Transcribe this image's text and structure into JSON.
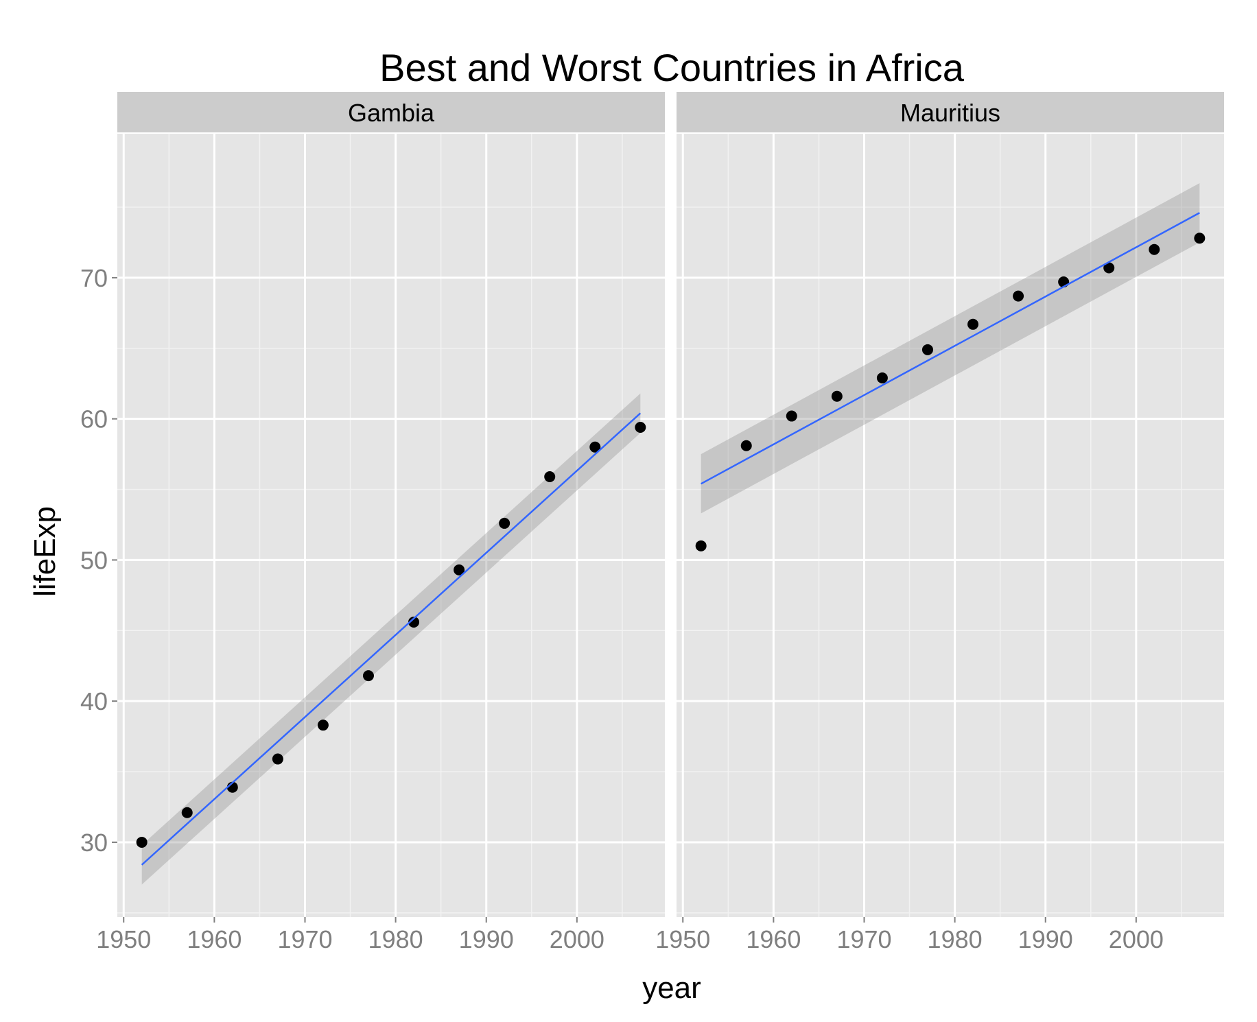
{
  "chart_data": {
    "type": "scatter",
    "title": "Best and Worst Countries in Africa",
    "xlabel": "year",
    "ylabel": "lifeExp",
    "xlim": [
      1949.3,
      2009.7
    ],
    "ylim": [
      24.7,
      80.2
    ],
    "x_ticks": [
      1950,
      1960,
      1970,
      1980,
      1990,
      2000
    ],
    "y_ticks": [
      30,
      40,
      50,
      60,
      70
    ],
    "grid": true,
    "panels": [
      {
        "name": "Gambia",
        "x": [
          1952,
          1957,
          1962,
          1967,
          1972,
          1977,
          1982,
          1987,
          1992,
          1997,
          2002,
          2007
        ],
        "y": [
          30.0,
          32.1,
          33.9,
          35.9,
          38.3,
          41.8,
          45.6,
          49.3,
          52.6,
          55.9,
          58.0,
          59.4
        ],
        "fit": {
          "x": [
            1952,
            2007
          ],
          "y": [
            28.4,
            60.4
          ]
        },
        "ci_lower": [
          27.0,
          59.0
        ],
        "ci_upper": [
          29.8,
          61.8
        ]
      },
      {
        "name": "Mauritius",
        "x": [
          1952,
          1957,
          1962,
          1967,
          1972,
          1977,
          1982,
          1987,
          1992,
          1997,
          2002,
          2007
        ],
        "y": [
          51.0,
          58.1,
          60.2,
          61.6,
          62.9,
          64.9,
          66.7,
          68.7,
          69.7,
          70.7,
          72.0,
          72.8
        ],
        "fit": {
          "x": [
            1952,
            2007
          ],
          "y": [
            55.4,
            74.6
          ]
        },
        "ci_lower": [
          53.3,
          72.5
        ],
        "ci_upper": [
          57.5,
          76.7
        ]
      }
    ],
    "colors": {
      "panel_bg": "#e5e5e5",
      "strip_bg": "#cccccc",
      "grid_major": "#ffffff",
      "grid_minor": "#f2f2f2",
      "points": "#000000",
      "fit_line": "#3366ff",
      "ci_band": "#999999",
      "axis_text": "#7f7f7f",
      "label_text": "#000000"
    }
  }
}
